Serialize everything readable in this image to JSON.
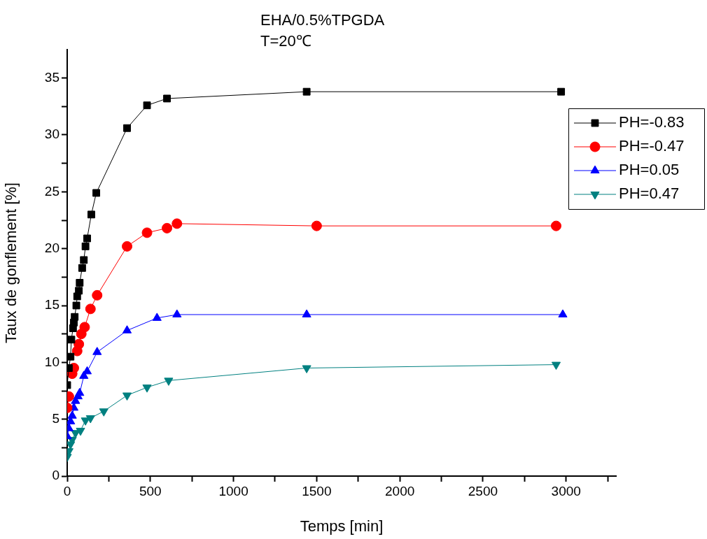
{
  "chart_data": {
    "type": "line",
    "title": "EHA/0.5%TPGDA\nT=20℃",
    "xlabel": "Temps [min]",
    "ylabel": "Taux de gonflement [%]",
    "xlim": [
      0,
      3300
    ],
    "ylim": [
      0,
      37.5
    ],
    "xticks": [
      0,
      {
        "value": 250,
        "label": null
      },
      500,
      {
        "value": 750,
        "label": null
      },
      1000,
      {
        "value": 1250,
        "label": null
      },
      1500,
      {
        "value": 1750,
        "label": null
      },
      2000,
      {
        "value": 2250,
        "label": null
      },
      2500,
      {
        "value": 2750,
        "label": null
      },
      3000,
      {
        "value": 3250,
        "label": null
      }
    ],
    "yticks": [
      0,
      {
        "value": 2.5,
        "label": null
      },
      5,
      {
        "value": 7.5,
        "label": null
      },
      10,
      {
        "value": 12.5,
        "label": null
      },
      15,
      {
        "value": 17.5,
        "label": null
      },
      20,
      {
        "value": 22.5,
        "label": null
      },
      25,
      {
        "value": 27.5,
        "label": null
      },
      30,
      {
        "value": 32.5,
        "label": null
      },
      35
    ],
    "grid": false,
    "legend": "top right",
    "line_style": "solid",
    "series": [
      {
        "name": "PH=-0.83",
        "color": "#000000",
        "marker": "square",
        "x": [
          0,
          10,
          20,
          25,
          35,
          40,
          45,
          55,
          60,
          70,
          75,
          90,
          100,
          110,
          120,
          145,
          175,
          360,
          480,
          600,
          1440,
          2970
        ],
        "values": [
          8,
          9.5,
          10.5,
          12,
          13,
          13.5,
          14,
          15,
          15.8,
          16.3,
          17,
          18.3,
          19,
          20.2,
          20.9,
          23,
          24.9,
          30.6,
          32.6,
          33.2,
          33.8,
          33.8
        ]
      },
      {
        "name": "PH=-0.47",
        "color": "#ff0000",
        "marker": "circle",
        "x": [
          0,
          10,
          20,
          30,
          40,
          50,
          60,
          70,
          85,
          105,
          140,
          180,
          360,
          480,
          600,
          660,
          1500,
          2940
        ],
        "values": [
          6,
          7,
          null,
          9,
          9.5,
          null,
          11,
          11.6,
          12.5,
          13.1,
          14.7,
          15.9,
          20.2,
          21.4,
          21.8,
          22.2,
          22,
          22
        ]
      },
      {
        "name": "PH=0.05",
        "color": "#0000ff",
        "marker": "triangle",
        "x": [
          0,
          10,
          20,
          30,
          40,
          50,
          65,
          75,
          100,
          120,
          180,
          360,
          540,
          660,
          1440,
          2980
        ],
        "values": [
          3.5,
          4.2,
          4.8,
          5.3,
          6,
          6.6,
          7,
          7.3,
          8.8,
          9.2,
          10.9,
          12.8,
          13.9,
          14.2,
          14.2,
          14.2
        ]
      },
      {
        "name": "PH=0.47",
        "color": "#008080",
        "marker": "triangle_down",
        "x": [
          0,
          10,
          20,
          30,
          50,
          80,
          110,
          140,
          220,
          360,
          480,
          610,
          1440,
          2940
        ],
        "values": [
          1.7,
          2.2,
          2.8,
          3.2,
          3.8,
          4,
          4.9,
          5.1,
          5.7,
          7.1,
          7.8,
          8.4,
          9.5,
          9.8
        ]
      }
    ]
  }
}
